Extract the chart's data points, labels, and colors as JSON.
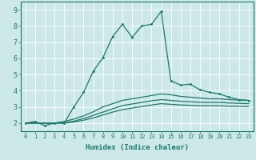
{
  "xlabel": "Humidex (Indice chaleur)",
  "bg_color": "#cce8e8",
  "line_color": "#1a7a6a",
  "grid_color": "#ffffff",
  "xlim": [
    -0.5,
    23.5
  ],
  "ylim": [
    1.5,
    9.5
  ],
  "xticks": [
    0,
    1,
    2,
    3,
    4,
    5,
    6,
    7,
    8,
    9,
    10,
    11,
    12,
    13,
    14,
    15,
    16,
    17,
    18,
    19,
    20,
    21,
    22,
    23
  ],
  "yticks": [
    2,
    3,
    4,
    5,
    6,
    7,
    8,
    9
  ],
  "curves": [
    {
      "x": [
        0,
        1,
        2,
        3,
        4,
        5,
        6,
        7,
        8,
        9,
        10,
        11,
        12,
        13,
        14,
        15,
        16,
        17,
        18,
        19,
        20,
        21,
        22,
        23
      ],
      "y": [
        2.0,
        2.1,
        1.85,
        2.0,
        2.0,
        3.0,
        3.9,
        5.2,
        6.05,
        7.35,
        8.1,
        7.3,
        8.0,
        8.1,
        8.9,
        4.6,
        4.35,
        4.4,
        4.05,
        3.9,
        3.8,
        3.6,
        3.45,
        3.4
      ],
      "marker": true
    },
    {
      "x": [
        0,
        1,
        2,
        3,
        4,
        5,
        6,
        7,
        8,
        9,
        10,
        11,
        12,
        13,
        14,
        15,
        16,
        17,
        18,
        19,
        20,
        21,
        22,
        23
      ],
      "y": [
        2.0,
        2.0,
        2.0,
        2.0,
        2.1,
        2.25,
        2.45,
        2.7,
        3.0,
        3.2,
        3.4,
        3.5,
        3.6,
        3.7,
        3.8,
        3.75,
        3.65,
        3.6,
        3.55,
        3.5,
        3.5,
        3.45,
        3.42,
        3.4
      ],
      "marker": false
    },
    {
      "x": [
        0,
        1,
        2,
        3,
        4,
        5,
        6,
        7,
        8,
        9,
        10,
        11,
        12,
        13,
        14,
        15,
        16,
        17,
        18,
        19,
        20,
        21,
        22,
        23
      ],
      "y": [
        2.0,
        2.0,
        2.0,
        2.0,
        2.02,
        2.12,
        2.28,
        2.48,
        2.68,
        2.88,
        3.08,
        3.18,
        3.28,
        3.38,
        3.45,
        3.4,
        3.35,
        3.32,
        3.28,
        3.28,
        3.28,
        3.24,
        3.22,
        3.2
      ],
      "marker": false
    },
    {
      "x": [
        0,
        1,
        2,
        3,
        4,
        5,
        6,
        7,
        8,
        9,
        10,
        11,
        12,
        13,
        14,
        15,
        16,
        17,
        18,
        19,
        20,
        21,
        22,
        23
      ],
      "y": [
        2.0,
        2.0,
        2.0,
        2.0,
        2.0,
        2.07,
        2.18,
        2.32,
        2.5,
        2.68,
        2.83,
        2.93,
        3.02,
        3.12,
        3.2,
        3.16,
        3.12,
        3.1,
        3.07,
        3.07,
        3.07,
        3.04,
        3.03,
        3.02
      ],
      "marker": false
    }
  ]
}
